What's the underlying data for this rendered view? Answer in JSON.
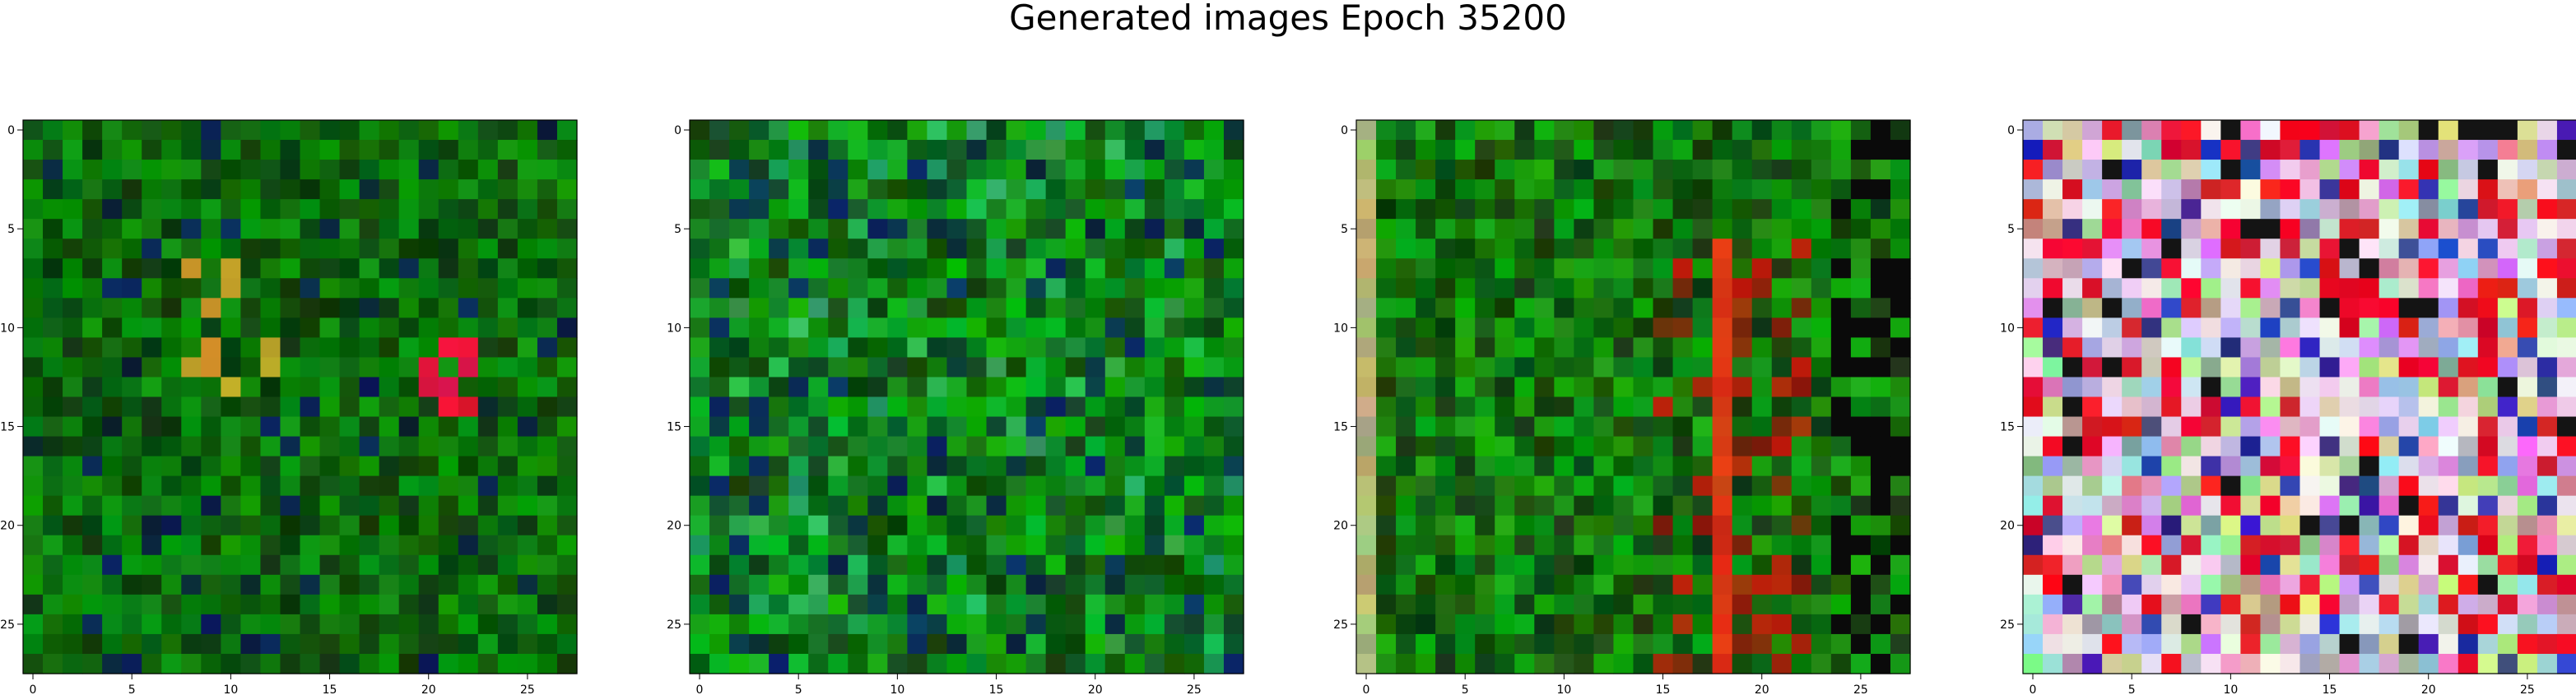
{
  "figure": {
    "title": "Generated images Epoch 35200"
  },
  "chart_data": {
    "type": "heatmap",
    "title": "Generated images Epoch 35200",
    "grid_size": 28,
    "grid": false,
    "panels": [
      {
        "id": "image-1",
        "palette": "green-dark",
        "x_ticks": [
          "0",
          "5",
          "10",
          "15",
          "20",
          "25"
        ],
        "y_ticks": [
          "0",
          "5",
          "10",
          "15",
          "20",
          "25"
        ],
        "xlim": [
          -0.5,
          27.5
        ],
        "ylim": [
          27.5,
          -0.5
        ]
      },
      {
        "id": "image-2",
        "palette": "green-teal",
        "x_ticks": [
          "0",
          "5",
          "10",
          "15",
          "20",
          "25"
        ],
        "y_ticks": [
          "0",
          "5",
          "10",
          "15",
          "20",
          "25"
        ],
        "xlim": [
          -0.5,
          27.5
        ],
        "ylim": [
          27.5,
          -0.5
        ]
      },
      {
        "id": "image-3",
        "palette": "green-red",
        "x_ticks": [
          "0",
          "5",
          "10",
          "15",
          "20",
          "25"
        ],
        "y_ticks": [
          "0",
          "5",
          "10",
          "15",
          "20",
          "25"
        ],
        "xlim": [
          -0.5,
          27.5
        ],
        "ylim": [
          27.5,
          -0.5
        ]
      },
      {
        "id": "image-4",
        "palette": "multicolor",
        "x_ticks": [
          "0",
          "5",
          "10",
          "15",
          "20",
          "25"
        ],
        "y_ticks": [
          "0",
          "5",
          "10",
          "15",
          "20",
          "25"
        ],
        "xlim": [
          -0.5,
          27.5
        ],
        "ylim": [
          27.5,
          -0.5
        ]
      }
    ]
  }
}
